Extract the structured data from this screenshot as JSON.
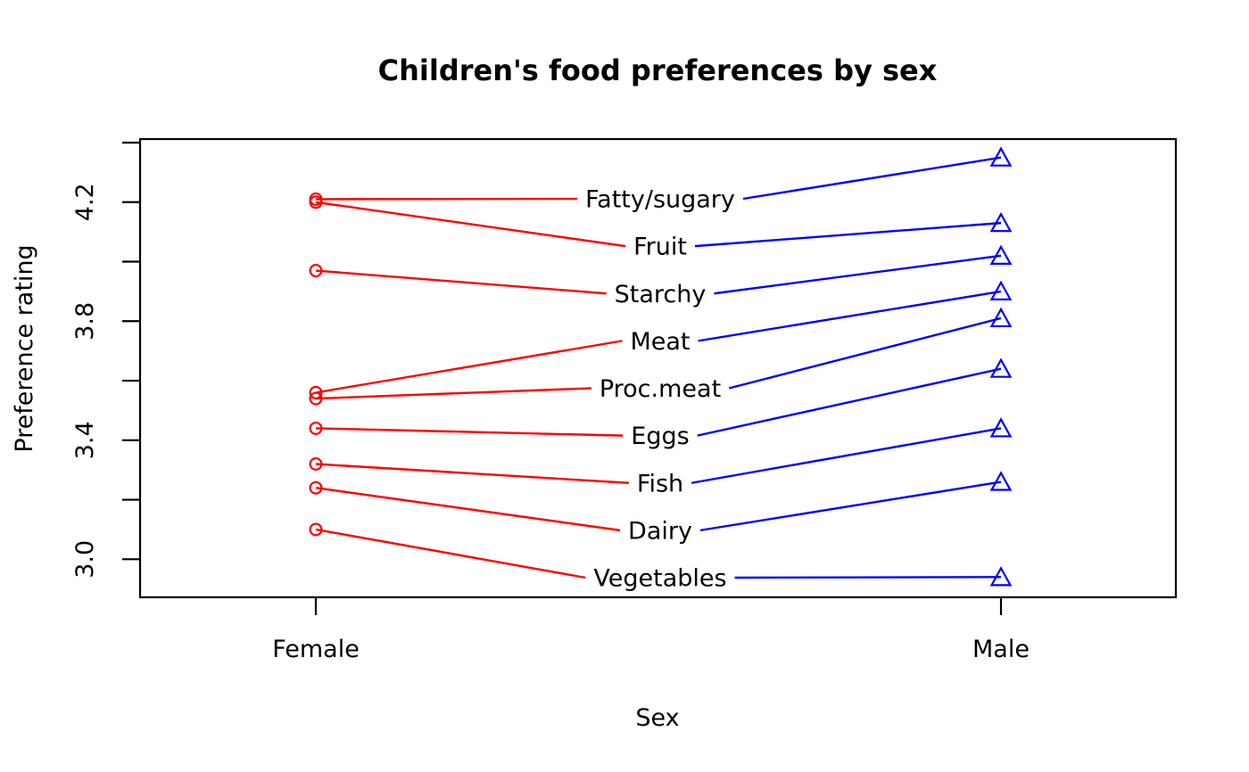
{
  "page": {
    "background": "#FFFFFF"
  },
  "chart_data": {
    "type": "line",
    "variant": "slopegraph",
    "title": "Children's food preferences by sex",
    "xlabel": "Sex",
    "ylabel": "Preference rating",
    "categories": [
      "Female",
      "Male"
    ],
    "series": [
      {
        "name": "Fatty/sugary",
        "values": [
          4.21,
          4.35
        ]
      },
      {
        "name": "Fruit",
        "values": [
          4.2,
          4.13
        ]
      },
      {
        "name": "Starchy",
        "values": [
          3.97,
          4.02
        ]
      },
      {
        "name": "Meat",
        "values": [
          3.56,
          3.9
        ]
      },
      {
        "name": "Proc.meat",
        "values": [
          3.54,
          3.81
        ]
      },
      {
        "name": "Eggs",
        "values": [
          3.44,
          3.64
        ]
      },
      {
        "name": "Fish",
        "values": [
          3.32,
          3.44
        ]
      },
      {
        "name": "Dairy",
        "values": [
          3.24,
          3.26
        ]
      },
      {
        "name": "Vegetables",
        "values": [
          3.1,
          2.94
        ]
      }
    ],
    "ylim": [
      2.87,
      4.42
    ],
    "y_ticks": [
      3.0,
      3.2,
      3.4,
      3.6,
      3.8,
      4.0,
      4.2,
      4.4
    ],
    "y_tick_labels": [
      "3.0",
      "3.4",
      "3.8",
      "4.2"
    ],
    "grid": false,
    "legend_position": "none",
    "marker_female": "open-circle",
    "marker_male": "open-triangle",
    "colors": {
      "female": "#FF0000",
      "male": "#0000FF",
      "axis": "#000000",
      "text": "#000000"
    }
  }
}
